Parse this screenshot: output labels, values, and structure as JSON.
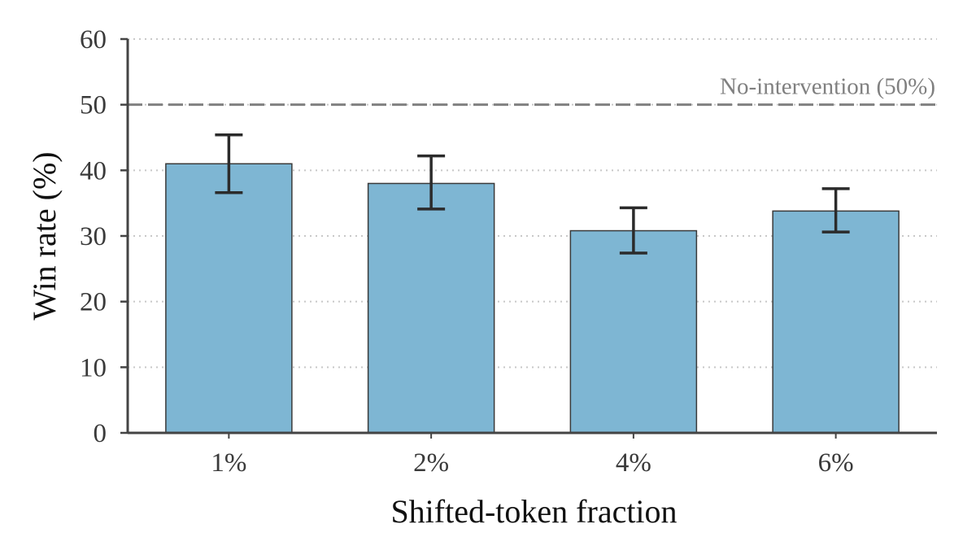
{
  "chart_data": {
    "type": "bar",
    "categories": [
      "1%",
      "2%",
      "4%",
      "6%"
    ],
    "values": [
      41.0,
      38.0,
      30.8,
      33.8
    ],
    "error_bars": [
      {
        "low": 36.6,
        "high": 45.4
      },
      {
        "low": 34.1,
        "high": 42.2
      },
      {
        "low": 27.4,
        "high": 34.3
      },
      {
        "low": 30.6,
        "high": 37.2
      }
    ],
    "xlabel": "Shifted-token fraction",
    "ylabel": "Win rate (%)",
    "ylim": [
      0,
      60
    ],
    "yticks": [
      0,
      10,
      20,
      30,
      40,
      50,
      60
    ],
    "grid": "horizontal dotted",
    "reference_line": {
      "value": 50,
      "label": "No-intervention (50%)",
      "style": "dashed"
    },
    "colors": {
      "bar": "#7eb6d3",
      "bar_edge": "#3a3a3a",
      "error_bar": "#2b2b2b",
      "reference": "#808080",
      "grid": "#c8c8c8",
      "axis": "#444444"
    }
  }
}
